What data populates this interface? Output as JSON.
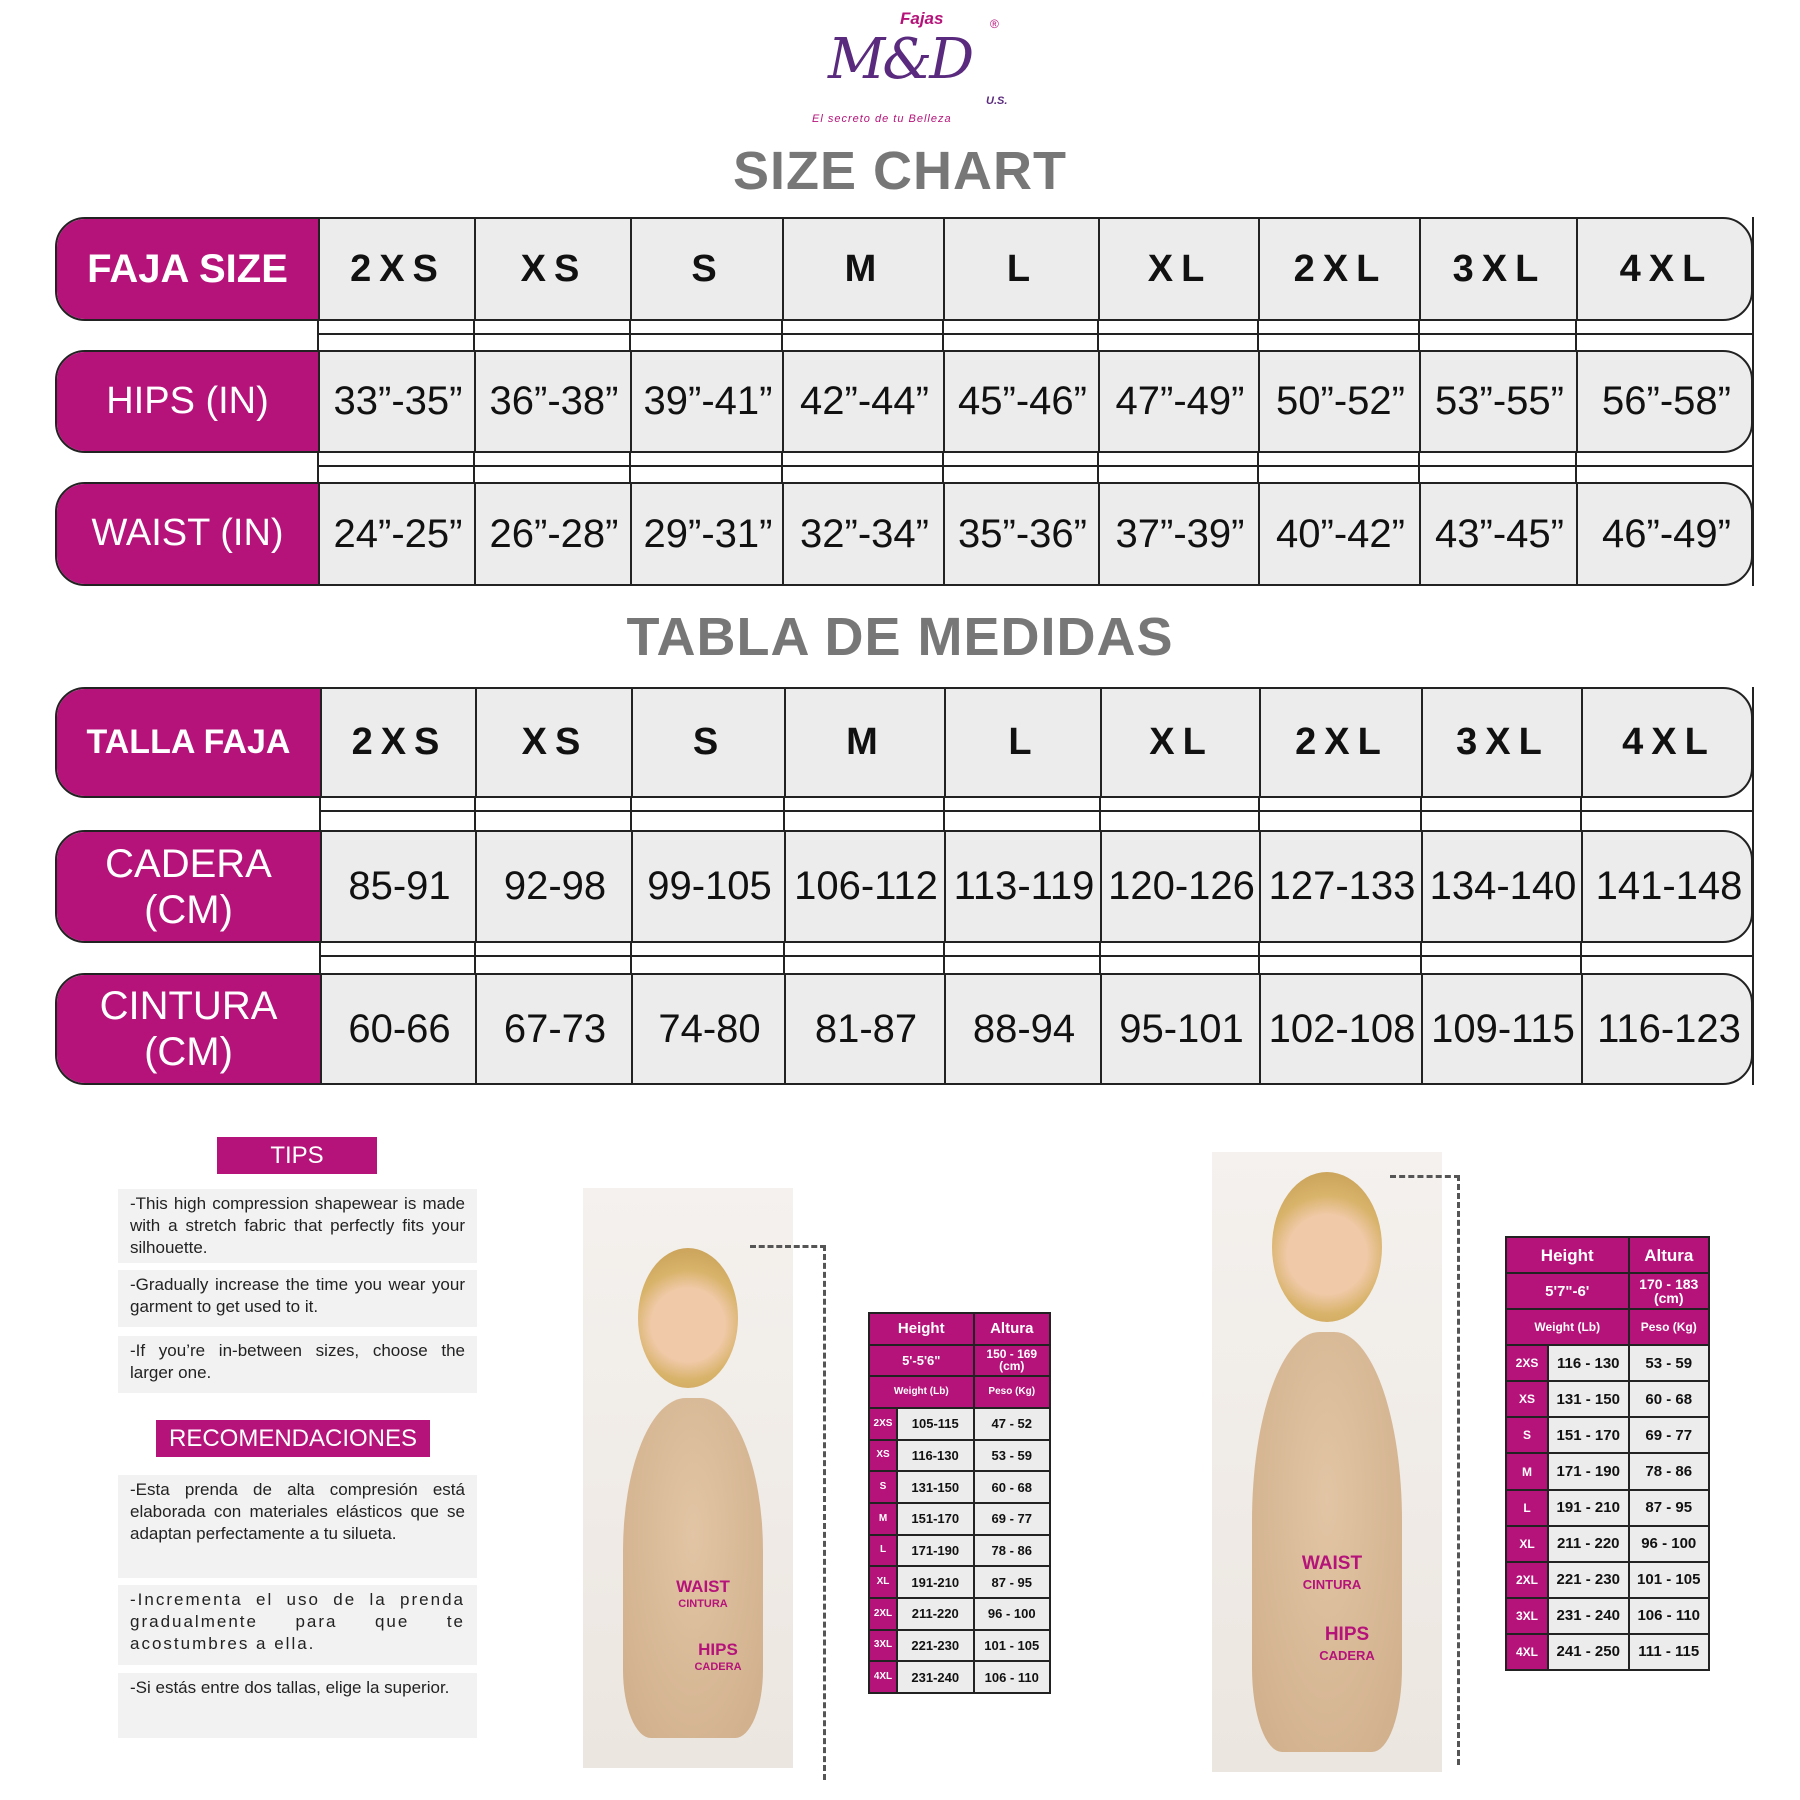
{
  "brand": {
    "top": "Fajas",
    "name": "M&D",
    "registered": "®",
    "country": "U.S.",
    "tagline": "El secreto de tu Belleza",
    "color": "#b5137a",
    "logo_color": "#5a2a7e"
  },
  "size_chart": {
    "title": "SIZE CHART",
    "rows": [
      {
        "label": "FAJA SIZE",
        "values": [
          "2XS",
          "XS",
          "S",
          "M",
          "L",
          "XL",
          "2XL",
          "3XL",
          "4XL"
        ]
      },
      {
        "label": "HIPS (IN)",
        "values": [
          "33”-35”",
          "36”-38”",
          "39”-41”",
          "42”-44”",
          "45”-46”",
          "47”-49”",
          "50”-52”",
          "53”-55”",
          "56”-58”"
        ]
      },
      {
        "label": "WAIST (IN)",
        "values": [
          "24”-25”",
          "26”-28”",
          "29”-31”",
          "32”-34”",
          "35”-36”",
          "37”-39”",
          "40”-42”",
          "43”-45”",
          "46”-49”"
        ]
      }
    ]
  },
  "tabla": {
    "title": "TABLA DE MEDIDAS",
    "rows": [
      {
        "label": "TALLA FAJA",
        "values": [
          "2XS",
          "XS",
          "S",
          "M",
          "L",
          "XL",
          "2XL",
          "3XL",
          "4XL"
        ]
      },
      {
        "label": "CADERA (CM)",
        "values": [
          "85-91",
          "92-98",
          "99-105",
          "106-112",
          "113-119",
          "120-126",
          "127-133",
          "134-140",
          "141-148"
        ]
      },
      {
        "label": "CINTURA (CM)",
        "values": [
          "60-66",
          "67-73",
          "74-80",
          "81-87",
          "88-94",
          "95-101",
          "102-108",
          "109-115",
          "116-123"
        ]
      }
    ]
  },
  "tips": {
    "heading": "TIPS",
    "items": [
      "-This high compression shapewear is made with a stretch fabric that perfectly fits your silhouette.",
      "-Gradually increase the time you wear your garment to get used to it.",
      "-If you’re in-between sizes, choose the larger one."
    ]
  },
  "recomendaciones": {
    "heading": "RECOMENDACIONES",
    "items": [
      "-Esta prenda de alta compresión está elaborada con materiales elásticos que se adaptan perfectamente a tu silueta.",
      "-Incrementa el uso de la prenda gradualmente para que te acostumbres a ella.",
      "-Si estás entre dos tallas, elige la superior."
    ]
  },
  "body_labels": {
    "waist": "WAIST",
    "cintura": "CINTURA",
    "hips": "HIPS",
    "cadera": "CADERA"
  },
  "height_tables": [
    {
      "height_label": "Height",
      "altura_label": "Altura",
      "height": "5'-5'6\"",
      "altura": "150 - 169 (cm)",
      "weight_label": "Weight (Lb)",
      "peso_label": "Peso (Kg)",
      "rows": [
        [
          "2XS",
          "105-115",
          "47 - 52"
        ],
        [
          "XS",
          "116-130",
          "53 - 59"
        ],
        [
          "S",
          "131-150",
          "60 - 68"
        ],
        [
          "M",
          "151-170",
          "69 - 77"
        ],
        [
          "L",
          "171-190",
          "78 - 86"
        ],
        [
          "XL",
          "191-210",
          "87 - 95"
        ],
        [
          "2XL",
          "211-220",
          "96 - 100"
        ],
        [
          "3XL",
          "221-230",
          "101 - 105"
        ],
        [
          "4XL",
          "231-240",
          "106 - 110"
        ]
      ]
    },
    {
      "height_label": "Height",
      "altura_label": "Altura",
      "height": "5'7\"-6'",
      "altura": "170 - 183 (cm)",
      "weight_label": "Weight (Lb)",
      "peso_label": "Peso (Kg)",
      "rows": [
        [
          "2XS",
          "116 - 130",
          "53 - 59"
        ],
        [
          "XS",
          "131 - 150",
          "60 - 68"
        ],
        [
          "S",
          "151 - 170",
          "69 - 77"
        ],
        [
          "M",
          "171 - 190",
          "78 - 86"
        ],
        [
          "L",
          "191 - 210",
          "87 - 95"
        ],
        [
          "XL",
          "211 - 220",
          "96 - 100"
        ],
        [
          "2XL",
          "221 - 230",
          "101 - 105"
        ],
        [
          "3XL",
          "231 - 240",
          "106 - 110"
        ],
        [
          "4XL",
          "241 - 250",
          "111 - 115"
        ]
      ]
    }
  ]
}
